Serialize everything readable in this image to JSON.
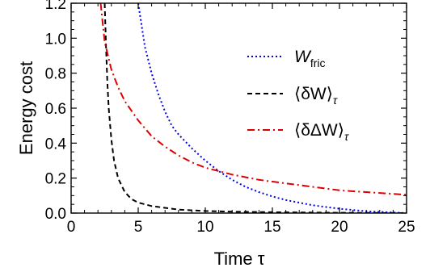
{
  "chart_data": {
    "type": "line",
    "xlabel": "Time τ",
    "ylabel": "Energy cost",
    "xlim": [
      0,
      25
    ],
    "ylim": [
      0,
      1.2
    ],
    "xticks": [
      0,
      5,
      10,
      15,
      20,
      25
    ],
    "yticks": [
      0.0,
      0.2,
      0.4,
      0.6,
      0.8,
      1.0,
      1.2
    ],
    "ytick_labels": [
      "0.0",
      "0.2",
      "0.4",
      "0.6",
      "0.8",
      "1.0",
      "1.2"
    ],
    "grid": false,
    "legend_position": "top-right",
    "series": [
      {
        "name": "W_fric",
        "legend_main": "W",
        "legend_sub": "fric",
        "color": "#0000ee",
        "dash": "dotted",
        "x": [
          5.0,
          5.5,
          6,
          6.5,
          7,
          7.5,
          8,
          9,
          10,
          11,
          12,
          13,
          14,
          15,
          16,
          18,
          20,
          22,
          25
        ],
        "y": [
          1.2,
          0.95,
          0.8,
          0.68,
          0.58,
          0.5,
          0.45,
          0.37,
          0.3,
          0.24,
          0.19,
          0.15,
          0.12,
          0.095,
          0.075,
          0.045,
          0.025,
          0.01,
          0.0
        ]
      },
      {
        "name": "⟨δW⟩τ",
        "legend_main": "⟨δW⟩",
        "legend_sub": "τ",
        "color": "#000000",
        "dash": "dashed",
        "x": [
          2.5,
          2.6,
          2.7,
          2.8,
          3.0,
          3.2,
          3.5,
          4,
          4.5,
          5,
          6,
          7,
          8,
          10,
          12,
          15,
          20,
          25
        ],
        "y": [
          1.2,
          0.95,
          0.75,
          0.6,
          0.42,
          0.3,
          0.2,
          0.12,
          0.08,
          0.06,
          0.04,
          0.03,
          0.02,
          0.012,
          0.008,
          0.005,
          0.002,
          0.0
        ]
      },
      {
        "name": "⟨δΔW⟩τ",
        "legend_main": "⟨δΔW⟩",
        "legend_sub": "τ",
        "color": "#dd0000",
        "dash": "dashdot",
        "x": [
          2.2,
          2.5,
          3,
          3.5,
          4,
          5,
          6,
          7,
          8,
          9,
          10,
          11,
          12,
          14,
          16,
          18,
          20,
          22,
          25
        ],
        "y": [
          1.2,
          0.98,
          0.82,
          0.72,
          0.64,
          0.53,
          0.44,
          0.38,
          0.33,
          0.29,
          0.26,
          0.24,
          0.22,
          0.19,
          0.17,
          0.15,
          0.13,
          0.12,
          0.105
        ]
      }
    ]
  }
}
